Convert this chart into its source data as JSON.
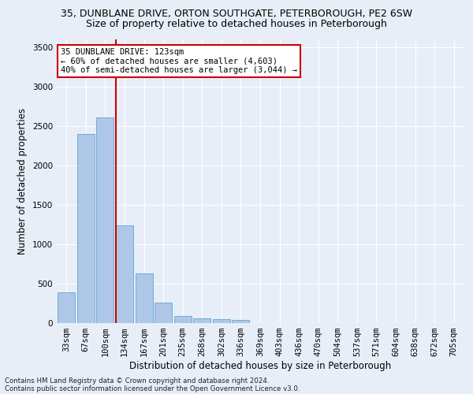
{
  "title_line1": "35, DUNBLANE DRIVE, ORTON SOUTHGATE, PETERBOROUGH, PE2 6SW",
  "title_line2": "Size of property relative to detached houses in Peterborough",
  "xlabel": "Distribution of detached houses by size in Peterborough",
  "ylabel": "Number of detached properties",
  "categories": [
    "33sqm",
    "67sqm",
    "100sqm",
    "134sqm",
    "167sqm",
    "201sqm",
    "235sqm",
    "268sqm",
    "302sqm",
    "336sqm",
    "369sqm",
    "403sqm",
    "436sqm",
    "470sqm",
    "504sqm",
    "537sqm",
    "571sqm",
    "604sqm",
    "638sqm",
    "672sqm",
    "705sqm"
  ],
  "values": [
    390,
    2400,
    2610,
    1240,
    635,
    260,
    95,
    60,
    55,
    40,
    0,
    0,
    0,
    0,
    0,
    0,
    0,
    0,
    0,
    0,
    0
  ],
  "bar_color": "#aec7e8",
  "bar_edge_color": "#6baed6",
  "vline_color": "#cc0000",
  "vline_pos": 2.55,
  "annotation_text": "35 DUNBLANE DRIVE: 123sqm\n← 60% of detached houses are smaller (4,603)\n40% of semi-detached houses are larger (3,044) →",
  "annotation_box_color": "#ffffff",
  "annotation_box_edge": "#cc0000",
  "ylim": [
    0,
    3600
  ],
  "yticks": [
    0,
    500,
    1000,
    1500,
    2000,
    2500,
    3000,
    3500
  ],
  "background_color": "#e8eef8",
  "grid_color": "#ffffff",
  "footer_line1": "Contains HM Land Registry data © Crown copyright and database right 2024.",
  "footer_line2": "Contains public sector information licensed under the Open Government Licence v3.0.",
  "title_fontsize": 9,
  "subtitle_fontsize": 9,
  "axis_label_fontsize": 8.5,
  "tick_fontsize": 7.5,
  "annot_fontsize": 7.5
}
